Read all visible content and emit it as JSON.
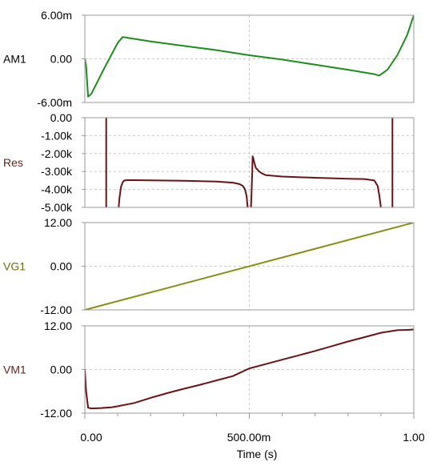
{
  "chart_data": [
    {
      "type": "line",
      "ylabel": "AM1",
      "label_color": "#000000",
      "series_color": "#1e8c1e",
      "ylim": [
        -0.006,
        0.006
      ],
      "ytick_values": [
        -0.006,
        0,
        0.006
      ],
      "ytick_labels": [
        "-6.00m",
        "0.00",
        "6.00m"
      ],
      "series": [
        {
          "x": [
            0,
            0.004,
            0.01,
            0.02,
            0.04,
            0.06,
            0.08,
            0.1,
            0.115,
            0.2,
            0.3,
            0.4,
            0.5,
            0.6,
            0.7,
            0.8,
            0.88,
            0.895,
            0.92,
            0.95,
            0.98,
            1.0
          ],
          "y": [
            0,
            -0.001,
            -0.0052,
            -0.0048,
            -0.003,
            -0.0012,
            0.0005,
            0.0022,
            0.003,
            0.0024,
            0.0018,
            0.0012,
            0.0005,
            -0.0001,
            -0.0008,
            -0.0015,
            -0.0021,
            -0.0023,
            -0.0015,
            0.0005,
            0.0033,
            0.006
          ]
        }
      ]
    },
    {
      "type": "line",
      "ylabel": "Res",
      "label_color": "#6b1e16",
      "series_color": "#6b1212",
      "ylim": [
        -5000,
        0
      ],
      "ytick_values": [
        0,
        -1000,
        -2000,
        -3000,
        -4000,
        -5000
      ],
      "ytick_labels": [
        "0.00",
        "-1.00k",
        "-2.00k",
        "-3.00k",
        "-4.00k",
        "-5.00k"
      ],
      "series": [
        {
          "x": [
            0.065,
            0.065
          ],
          "y": [
            0,
            -5000
          ]
        },
        {
          "x": [
            0.103,
            0.105,
            0.11,
            0.115,
            0.12,
            0.13,
            0.15,
            0.2,
            0.3,
            0.4,
            0.45,
            0.47,
            0.48,
            0.487,
            0.492,
            0.495
          ],
          "y": [
            -5000,
            -4500,
            -3850,
            -3600,
            -3500,
            -3480,
            -3480,
            -3490,
            -3520,
            -3560,
            -3620,
            -3700,
            -3800,
            -4000,
            -4400,
            -5000
          ]
        },
        {
          "x": [
            0.505,
            0.507,
            0.509,
            0.51,
            0.512,
            0.515,
            0.52,
            0.53,
            0.54,
            0.55,
            0.6,
            0.7,
            0.8,
            0.85,
            0.88,
            0.89,
            0.895,
            0.9
          ],
          "y": [
            -5000,
            -4000,
            -3000,
            -2150,
            -2250,
            -2500,
            -2800,
            -3000,
            -3120,
            -3200,
            -3280,
            -3350,
            -3400,
            -3420,
            -3500,
            -3800,
            -4300,
            -5000
          ]
        },
        {
          "x": [
            0.935,
            0.935
          ],
          "y": [
            -5000,
            0
          ]
        }
      ]
    },
    {
      "type": "line",
      "ylabel": "VG1",
      "label_color": "#6b6b10",
      "series_color": "#8c8c14",
      "ylim": [
        -12,
        12
      ],
      "ytick_values": [
        -12,
        0,
        12
      ],
      "ytick_labels": [
        "-12.00",
        "0.00",
        "12.00"
      ],
      "series": [
        {
          "x": [
            0,
            1
          ],
          "y": [
            -12,
            12
          ]
        }
      ]
    },
    {
      "type": "line",
      "ylabel": "VM1",
      "label_color": "#6b1e16",
      "series_color": "#6b1212",
      "ylim": [
        -12,
        12
      ],
      "ytick_values": [
        -12,
        0,
        12
      ],
      "ytick_labels": [
        "-12.00",
        "0.00",
        "12.00"
      ],
      "series": [
        {
          "x": [
            0,
            0.004,
            0.01,
            0.02,
            0.05,
            0.08,
            0.1,
            0.15,
            0.2,
            0.25,
            0.3,
            0.35,
            0.4,
            0.45,
            0.5,
            0.55,
            0.6,
            0.65,
            0.7,
            0.75,
            0.8,
            0.85,
            0.9,
            0.95,
            0.98,
            1.0
          ],
          "y": [
            0,
            -6,
            -10.5,
            -10.7,
            -10.6,
            -10.4,
            -10.1,
            -9.2,
            -7.8,
            -6.5,
            -5.3,
            -4.2,
            -3.0,
            -1.8,
            0.3,
            1.5,
            2.7,
            3.9,
            5.1,
            6.4,
            7.7,
            8.9,
            10.1,
            10.8,
            10.9,
            11.0
          ]
        }
      ]
    }
  ],
  "x_axis": {
    "xlim": [
      0,
      1
    ],
    "tick_values": [
      0,
      0.5,
      1
    ],
    "tick_labels": [
      "0.00",
      "500.00m",
      "1.00"
    ],
    "label": "Time (s)"
  },
  "colors": {
    "frame": "#9a9a9a",
    "grid": "#c8c8c8",
    "tick_text": "#000000"
  }
}
